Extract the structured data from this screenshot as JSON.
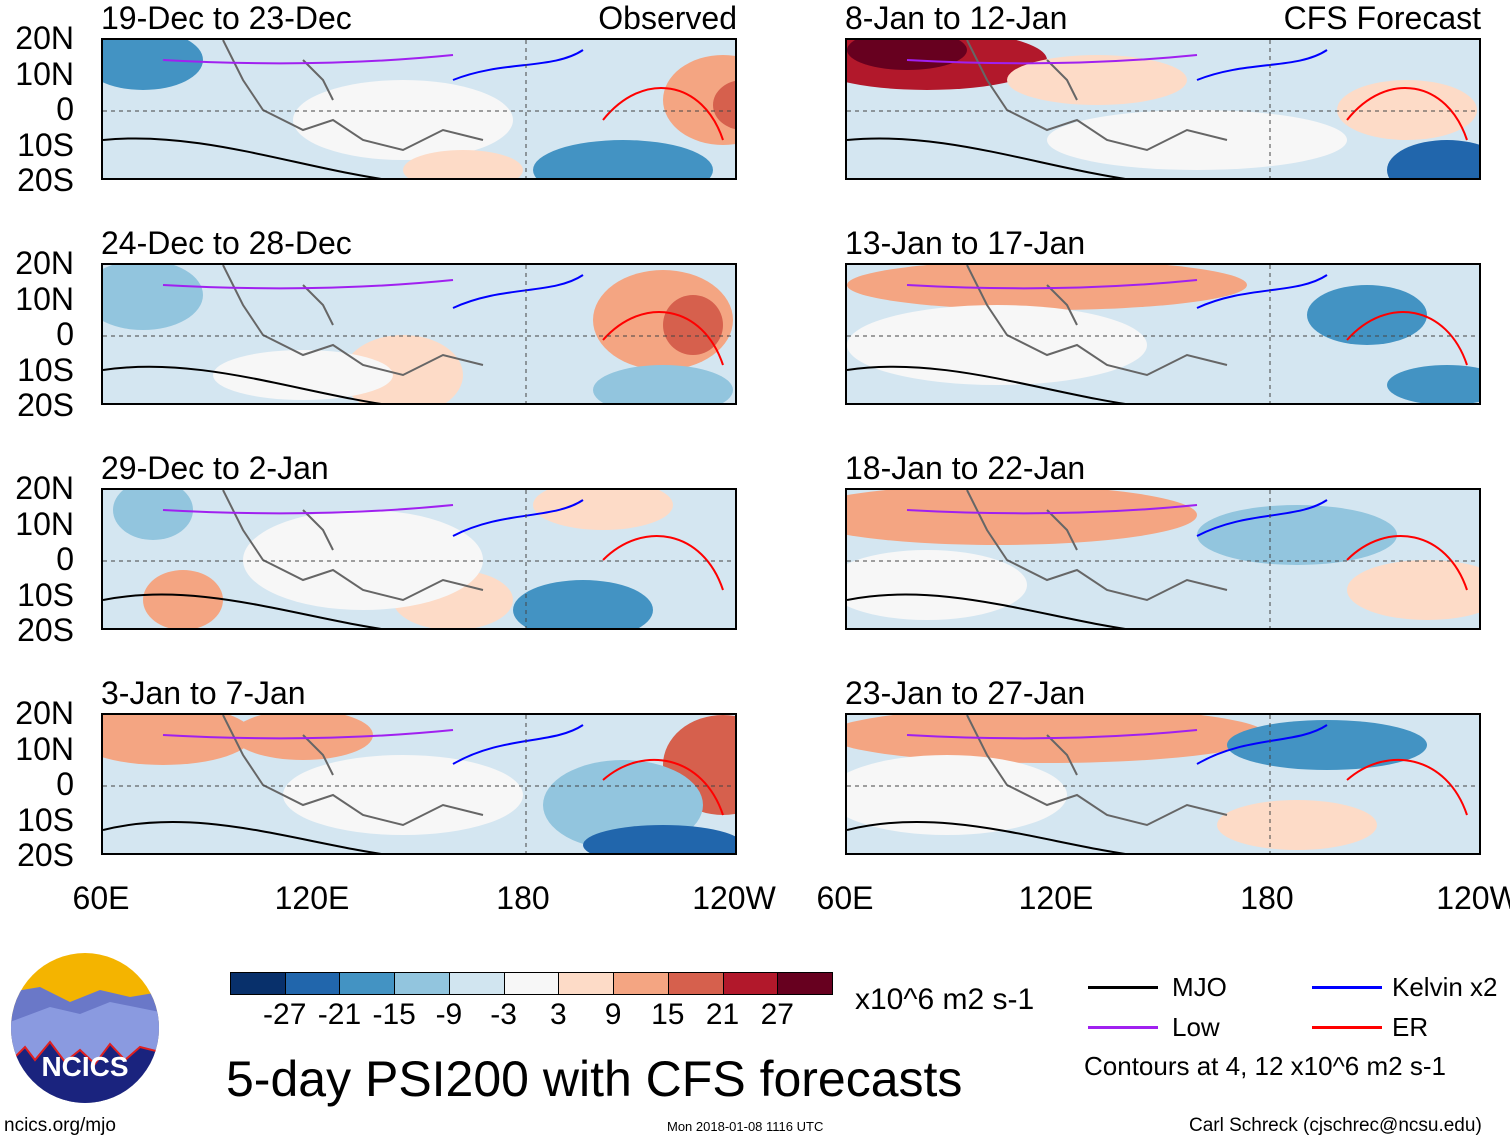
{
  "panels_left": [
    {
      "title": "19-Dec to 23-Dec",
      "tag": "Observed"
    },
    {
      "title": "24-Dec to 28-Dec"
    },
    {
      "title": "29-Dec to 2-Jan"
    },
    {
      "title": "3-Jan to 7-Jan"
    }
  ],
  "panels_right": [
    {
      "title": "8-Jan to 12-Jan",
      "tag": "CFS Forecast"
    },
    {
      "title": "13-Jan to 17-Jan"
    },
    {
      "title": "18-Jan to 22-Jan"
    },
    {
      "title": "23-Jan to 27-Jan"
    }
  ],
  "lat_labels": [
    "20N",
    "10N",
    "0",
    "10S",
    "20S"
  ],
  "lon_labels": [
    "60E",
    "120E",
    "180",
    "120W"
  ],
  "colorbar": {
    "colors": [
      "#08306b",
      "#2166ac",
      "#4393c3",
      "#92c5de",
      "#d1e5f0",
      "#f7f7f7",
      "#fddbc7",
      "#f4a582",
      "#d6604d",
      "#b2182b",
      "#67001f"
    ],
    "labels": [
      "-27",
      "-21",
      "-15",
      "-9",
      "-3",
      "3",
      "9",
      "15",
      "21",
      "27"
    ],
    "units": "x10^6 m2 s-1"
  },
  "legend": {
    "items": [
      {
        "label": "MJO",
        "color": "#000000"
      },
      {
        "label": "Kelvin x2",
        "color": "#0000ff"
      },
      {
        "label": "Low",
        "color": "#a020f0"
      },
      {
        "label": "ER",
        "color": "#ff0000"
      }
    ],
    "note": "Contours at 4, 12 x10^6 m2 s-1"
  },
  "title": "5-day PSI200 with CFS forecasts",
  "logo_text": "NCICS",
  "footer": {
    "url": "ncics.org/mjo",
    "timestamp": "Mon 2018-01-08 1116 UTC",
    "author": "Carl Schreck (cjschrec@ncsu.edu)"
  }
}
